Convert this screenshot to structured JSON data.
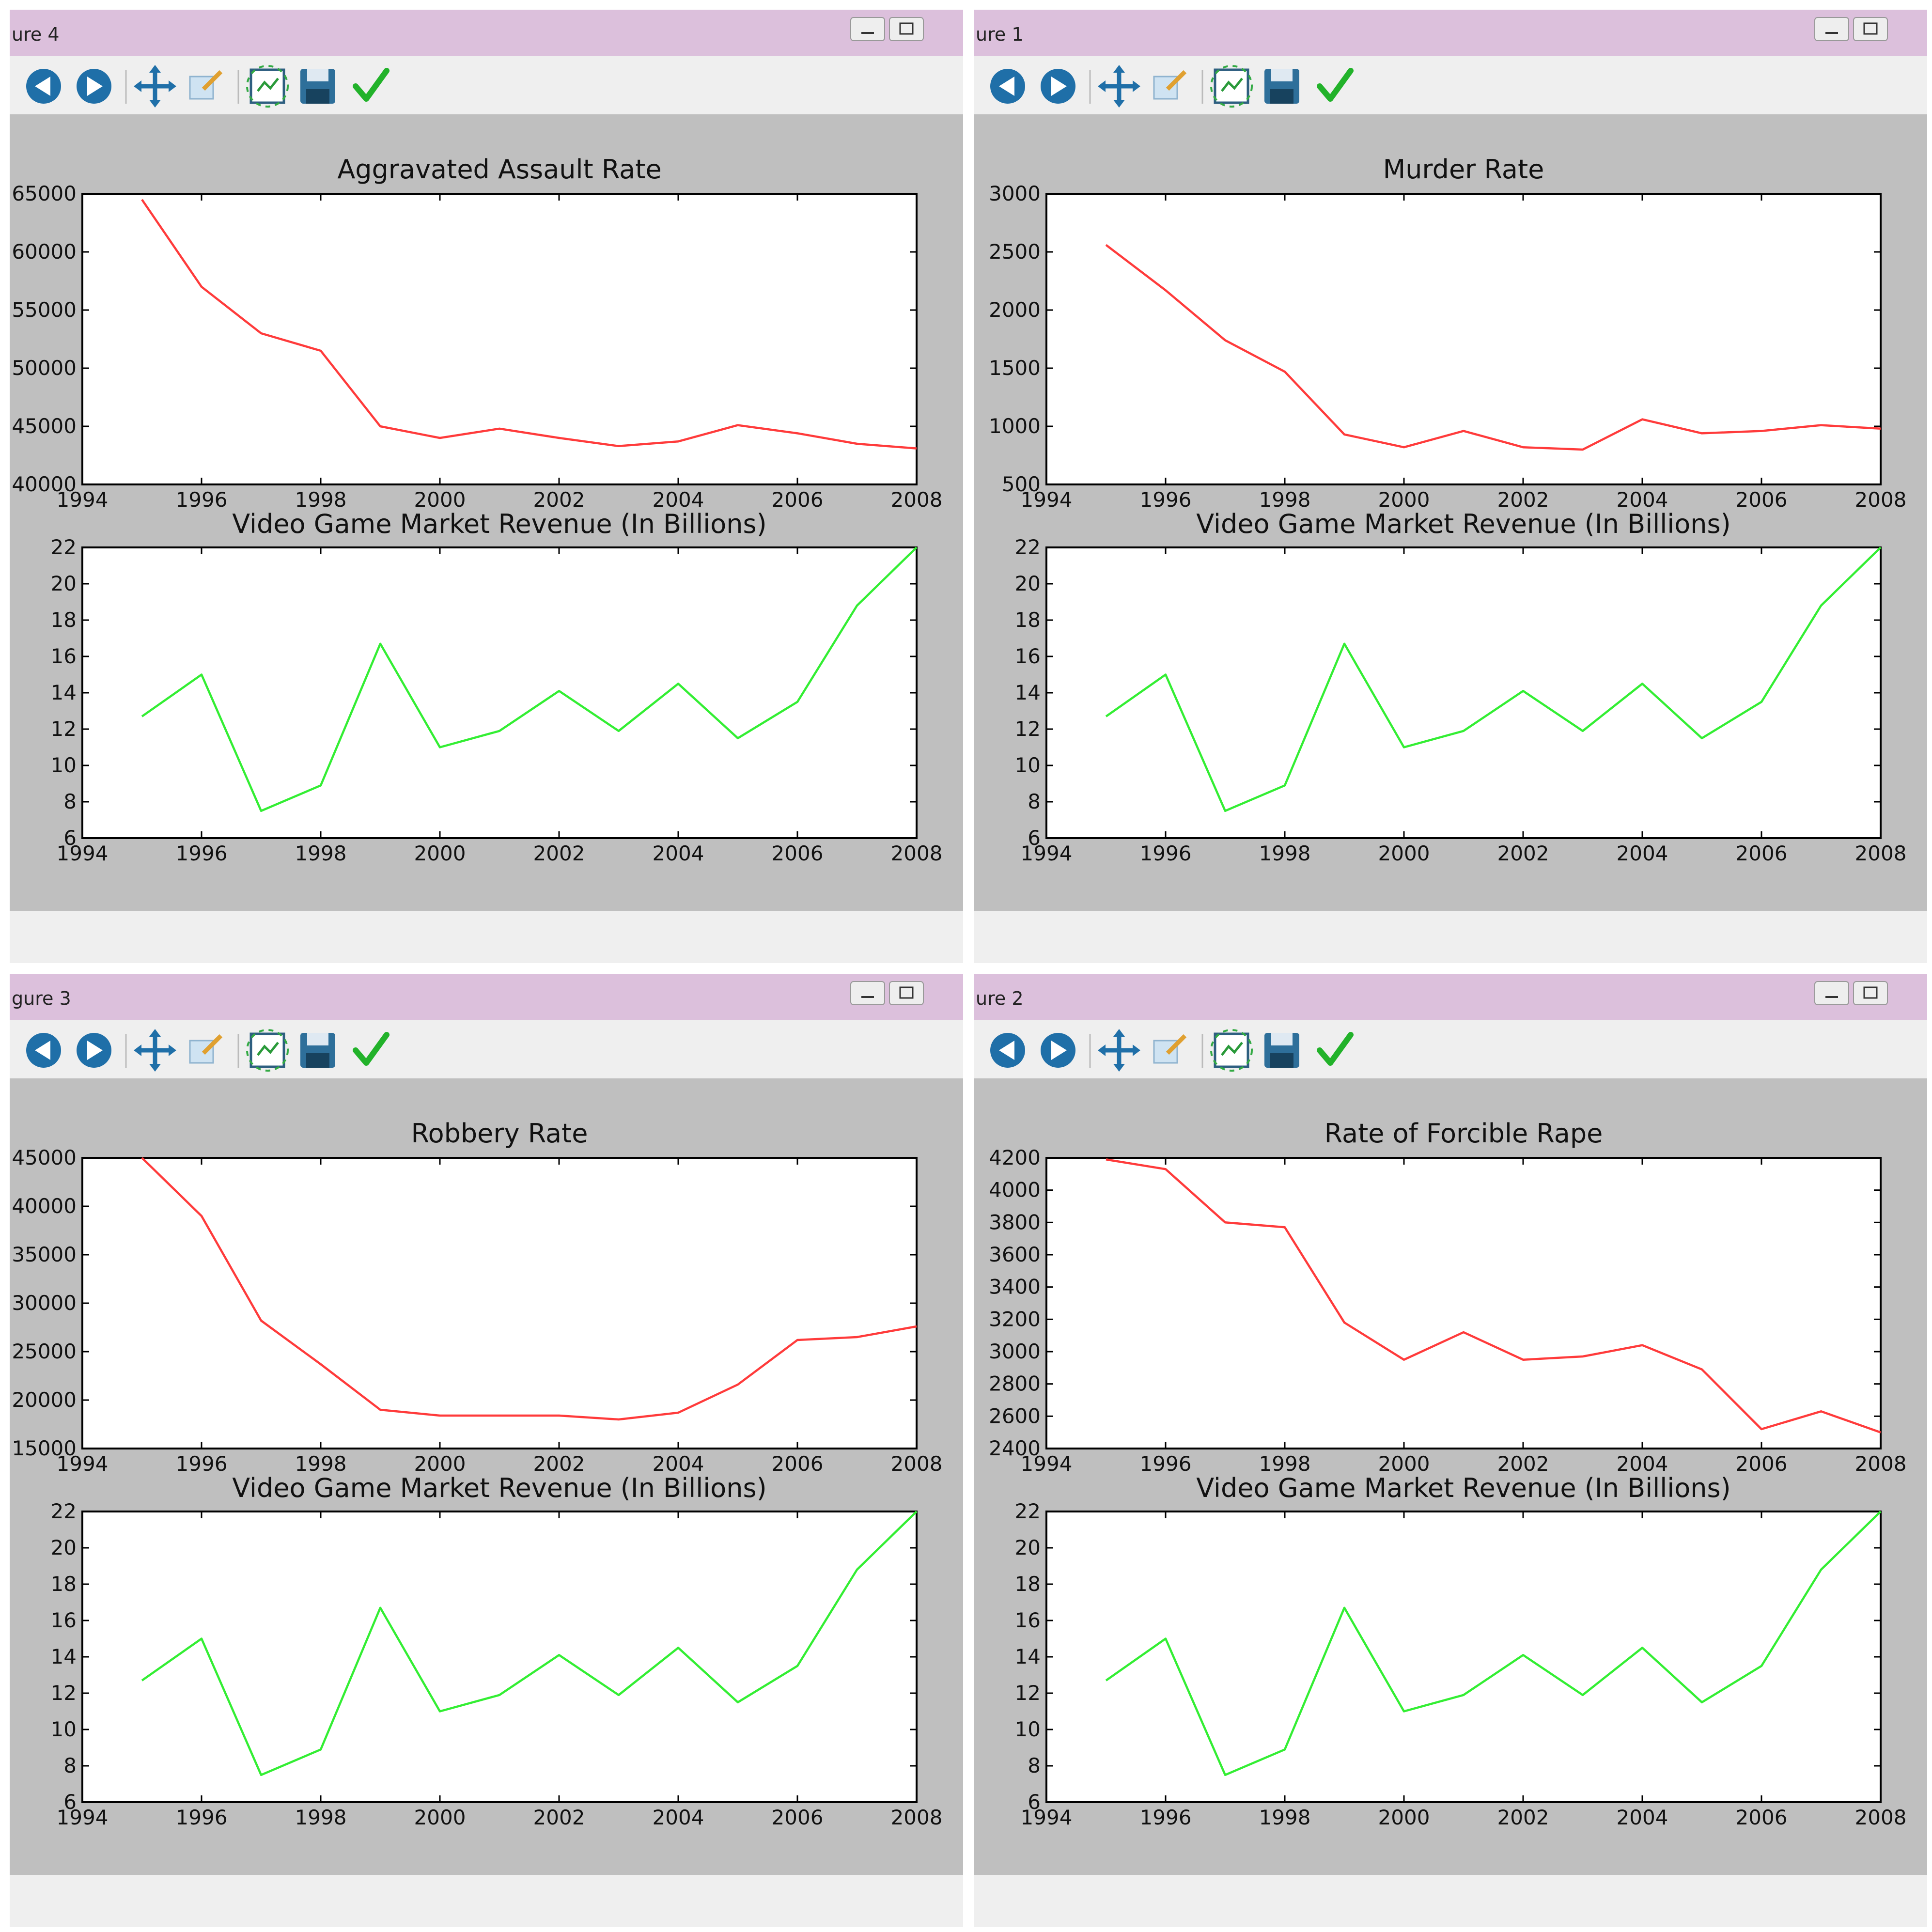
{
  "windows": [
    {
      "title": "ure 4",
      "chart_data": [
        {
          "type": "line",
          "title": "Aggravated Assault Rate",
          "xlim": [
            1994,
            2008
          ],
          "ylim": [
            40000,
            65000
          ],
          "xticks": [
            "1994",
            "1996",
            "1998",
            "2000",
            "2002",
            "2004",
            "2006",
            "2008"
          ],
          "yticks": [
            "40000",
            "45000",
            "50000",
            "55000",
            "60000",
            "65000"
          ],
          "tick_label_prefix_clip": 1,
          "grid": false,
          "color": "#ff3b3b",
          "x": [
            1995,
            1996,
            1997,
            1998,
            1999,
            2000,
            2001,
            2002,
            2003,
            2004,
            2005,
            2006,
            2007,
            2008
          ],
          "values": [
            64500,
            57000,
            53000,
            51500,
            45000,
            44000,
            44800,
            44000,
            43300,
            43700,
            45100,
            44400,
            43500,
            43100
          ]
        },
        {
          "type": "line",
          "title": "Video Game Market Revenue (In Billions)",
          "xlim": [
            1994,
            2008
          ],
          "ylim": [
            6,
            22
          ],
          "xticks": [
            "1994",
            "1996",
            "1998",
            "2000",
            "2002",
            "2004",
            "2006",
            "2008"
          ],
          "yticks": [
            "6",
            "8",
            "10",
            "12",
            "14",
            "16",
            "18",
            "20",
            "22"
          ],
          "grid": false,
          "color": "#33ee33",
          "x": [
            1995,
            1996,
            1997,
            1998,
            1999,
            2000,
            2001,
            2002,
            2003,
            2004,
            2005,
            2006,
            2007,
            2008
          ],
          "values": [
            12.7,
            15.0,
            7.5,
            8.9,
            16.7,
            11.0,
            11.9,
            14.1,
            11.9,
            14.5,
            11.5,
            13.5,
            18.8,
            22.0
          ]
        }
      ]
    },
    {
      "title": "ure 1",
      "chart_data": [
        {
          "type": "line",
          "title": "Murder Rate",
          "xlim": [
            1994,
            2008
          ],
          "ylim": [
            500,
            3000
          ],
          "xticks": [
            "1994",
            "1996",
            "1998",
            "2000",
            "2002",
            "2004",
            "2006",
            "2008"
          ],
          "yticks": [
            "500",
            "1000",
            "1500",
            "2000",
            "2500",
            "3000"
          ],
          "grid": false,
          "color": "#ff3b3b",
          "x": [
            1995,
            1996,
            1997,
            1998,
            1999,
            2000,
            2001,
            2002,
            2003,
            2004,
            2005,
            2006,
            2007,
            2008
          ],
          "values": [
            2560,
            2170,
            1740,
            1470,
            930,
            820,
            960,
            820,
            800,
            1060,
            940,
            960,
            1010,
            980
          ]
        },
        {
          "type": "line",
          "title": "Video Game Market Revenue (In Billions)",
          "xlim": [
            1994,
            2008
          ],
          "ylim": [
            6,
            22
          ],
          "xticks": [
            "1994",
            "1996",
            "1998",
            "2000",
            "2002",
            "2004",
            "2006",
            "2008"
          ],
          "yticks": [
            "6",
            "8",
            "10",
            "12",
            "14",
            "16",
            "18",
            "20",
            "22"
          ],
          "grid": false,
          "color": "#33ee33",
          "x": [
            1995,
            1996,
            1997,
            1998,
            1999,
            2000,
            2001,
            2002,
            2003,
            2004,
            2005,
            2006,
            2007,
            2008
          ],
          "values": [
            12.7,
            15.0,
            7.5,
            8.9,
            16.7,
            11.0,
            11.9,
            14.1,
            11.9,
            14.5,
            11.5,
            13.5,
            18.8,
            22.0
          ]
        }
      ]
    },
    {
      "title": "gure 3",
      "chart_data": [
        {
          "type": "line",
          "title": "Robbery Rate",
          "xlim": [
            1994,
            2008
          ],
          "ylim": [
            15000,
            45000
          ],
          "xticks": [
            "1994",
            "1996",
            "1998",
            "2000",
            "2002",
            "2004",
            "2006",
            "2008"
          ],
          "yticks": [
            "15000",
            "20000",
            "25000",
            "30000",
            "35000",
            "40000",
            "45000"
          ],
          "grid": false,
          "color": "#ff3b3b",
          "x": [
            1995,
            1996,
            1997,
            1998,
            1999,
            2000,
            2001,
            2002,
            2003,
            2004,
            2005,
            2006,
            2007,
            2008
          ],
          "values": [
            45000,
            39000,
            28200,
            23700,
            19000,
            18400,
            18400,
            18400,
            18000,
            18700,
            21600,
            26200,
            26500,
            27600
          ]
        },
        {
          "type": "line",
          "title": "Video Game Market Revenue (In Billions)",
          "xlim": [
            1994,
            2008
          ],
          "ylim": [
            6,
            22
          ],
          "xticks": [
            "1994",
            "1996",
            "1998",
            "2000",
            "2002",
            "2004",
            "2006",
            "2008"
          ],
          "yticks": [
            "6",
            "8",
            "10",
            "12",
            "14",
            "16",
            "18",
            "20",
            "22"
          ],
          "grid": false,
          "color": "#33ee33",
          "x": [
            1995,
            1996,
            1997,
            1998,
            1999,
            2000,
            2001,
            2002,
            2003,
            2004,
            2005,
            2006,
            2007,
            2008
          ],
          "values": [
            12.7,
            15.0,
            7.5,
            8.9,
            16.7,
            11.0,
            11.9,
            14.1,
            11.9,
            14.5,
            11.5,
            13.5,
            18.8,
            22.0
          ]
        }
      ]
    },
    {
      "title": "ure 2",
      "chart_data": [
        {
          "type": "line",
          "title": "Rate of Forcible Rape",
          "xlim": [
            1994,
            2008
          ],
          "ylim": [
            2400,
            4200
          ],
          "xticks": [
            "1994",
            "1996",
            "1998",
            "2000",
            "2002",
            "2004",
            "2006",
            "2008"
          ],
          "yticks": [
            "2400",
            "2600",
            "2800",
            "3000",
            "3200",
            "3400",
            "3600",
            "3800",
            "4000",
            "4200"
          ],
          "grid": false,
          "color": "#ff3b3b",
          "x": [
            1995,
            1996,
            1997,
            1998,
            1999,
            2000,
            2001,
            2002,
            2003,
            2004,
            2005,
            2006,
            2007,
            2008
          ],
          "values": [
            4190,
            4130,
            3800,
            3770,
            3180,
            2950,
            3120,
            2950,
            2970,
            3040,
            2890,
            2520,
            2630,
            2500
          ]
        },
        {
          "type": "line",
          "title": "Video Game Market Revenue (In Billions)",
          "xlim": [
            1994,
            2008
          ],
          "ylim": [
            6,
            22
          ],
          "xticks": [
            "1994",
            "1996",
            "1998",
            "2000",
            "2002",
            "2004",
            "2006",
            "2008"
          ],
          "yticks": [
            "6",
            "8",
            "10",
            "12",
            "14",
            "16",
            "18",
            "20",
            "22"
          ],
          "grid": false,
          "color": "#33ee33",
          "x": [
            1995,
            1996,
            1997,
            1998,
            1999,
            2000,
            2001,
            2002,
            2003,
            2004,
            2005,
            2006,
            2007,
            2008
          ],
          "values": [
            12.7,
            15.0,
            7.5,
            8.9,
            16.7,
            11.0,
            11.9,
            14.1,
            11.9,
            14.5,
            11.5,
            13.5,
            18.8,
            22.0
          ]
        }
      ]
    }
  ],
  "toolbar": {
    "icons": [
      "back-icon",
      "forward-icon",
      "pan-icon",
      "zoom-icon",
      "configure-subplots-icon",
      "save-icon",
      "check-icon"
    ]
  },
  "colors": {
    "titlebar": "#dcc0dc",
    "toolbar_bg": "#efefef",
    "figure_bg": "#bfbfbf",
    "axes_bg": "#ffffff",
    "icon_blue": "#1f6fa8"
  }
}
